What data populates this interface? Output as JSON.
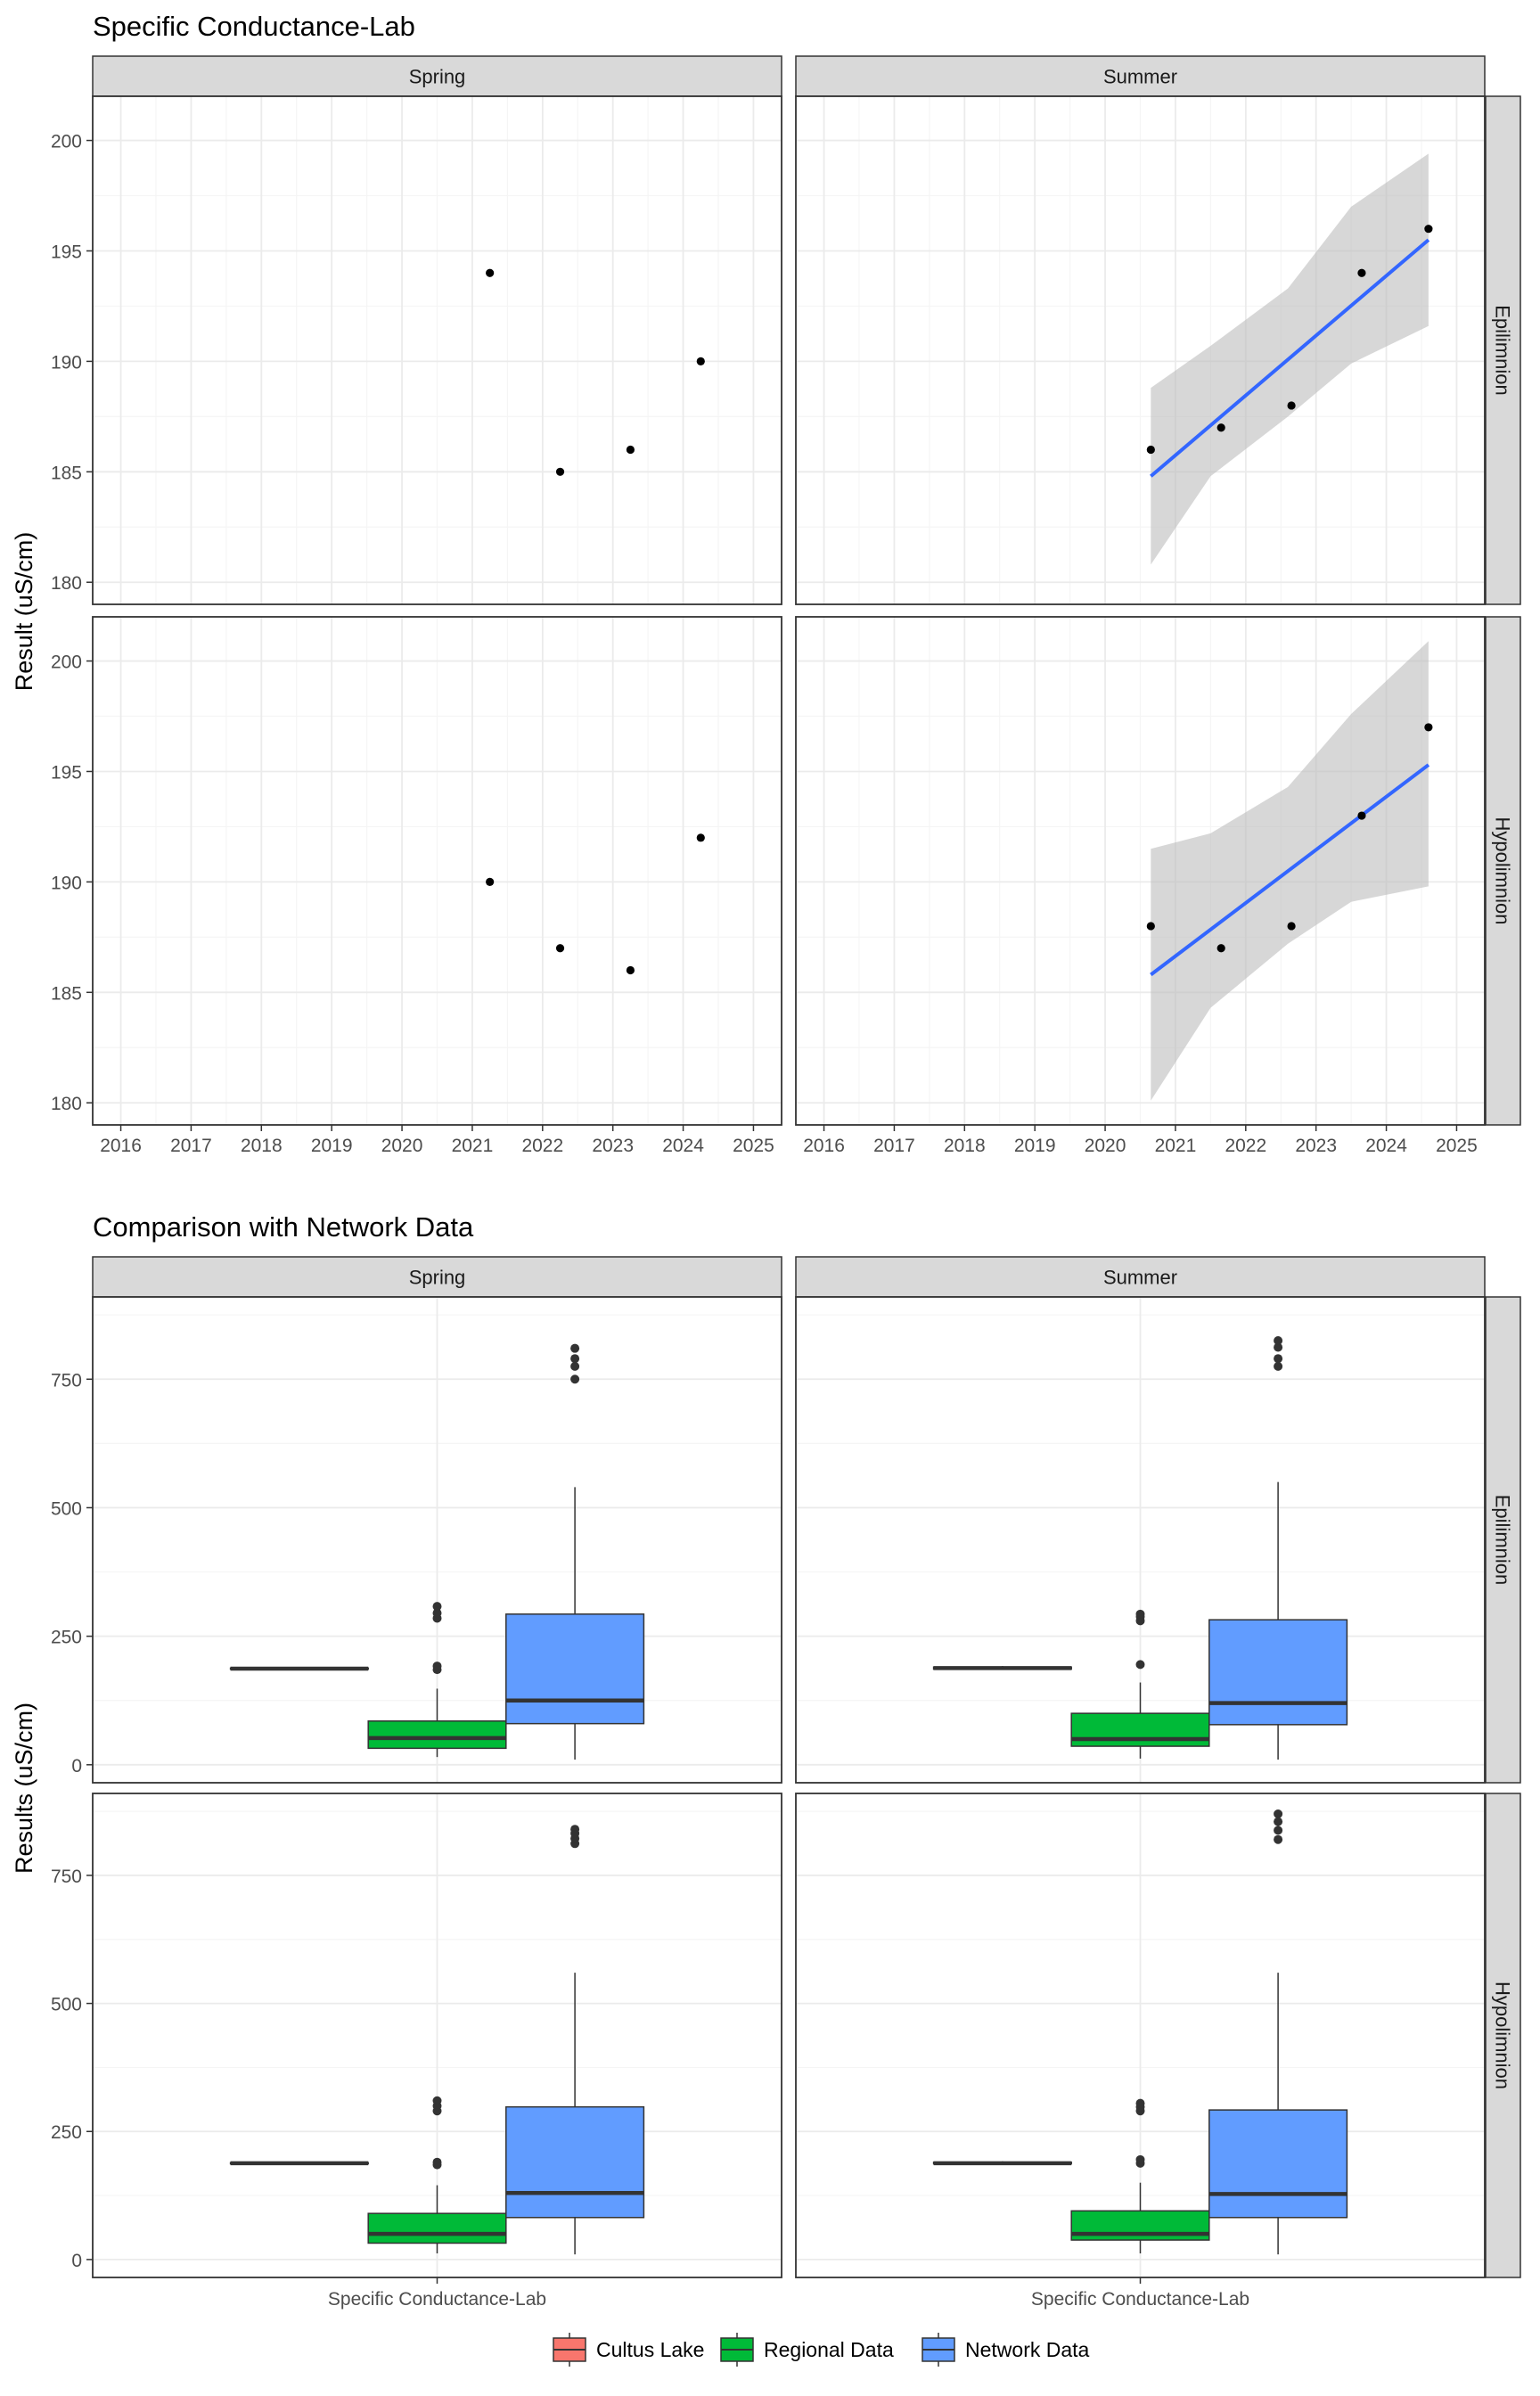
{
  "colors": {
    "strip_fill": "#d9d9d9",
    "grid_major": "#ebebeb",
    "grid_minor": "#f5f5f5",
    "panel_border": "#333333",
    "point": "#000000",
    "fit_line": "#3366ff",
    "ci_band": "#bdbdbd",
    "cultus_lake": "#f8766d",
    "regional_data": "#00ba38",
    "network_data": "#619cff"
  },
  "chart_data": [
    {
      "type": "scatter",
      "title": "Specific Conductance-Lab",
      "ylabel": "Result (uS/cm)",
      "xlabel": "",
      "column_facets": [
        "Spring",
        "Summer"
      ],
      "row_facets": [
        "Epilimnion",
        "Hypolimnion"
      ],
      "xlim": [
        2015.6,
        2025.4
      ],
      "ylim": [
        179,
        202
      ],
      "x_ticks": [
        "2016",
        "2017",
        "2018",
        "2019",
        "2020",
        "2021",
        "2022",
        "2023",
        "2024",
        "2025"
      ],
      "y_ticks": [
        "180",
        "185",
        "190",
        "195",
        "200"
      ],
      "grid": true,
      "panels": [
        {
          "column": "Spring",
          "row": "Epilimnion",
          "points": [
            {
              "x": 2021.25,
              "y": 194
            },
            {
              "x": 2022.25,
              "y": 185
            },
            {
              "x": 2023.25,
              "y": 186
            },
            {
              "x": 2024.25,
              "y": 190
            }
          ],
          "fit": null
        },
        {
          "column": "Summer",
          "row": "Epilimnion",
          "points": [
            {
              "x": 2020.65,
              "y": 186
            },
            {
              "x": 2021.65,
              "y": 187
            },
            {
              "x": 2022.65,
              "y": 188
            },
            {
              "x": 2023.65,
              "y": 194
            },
            {
              "x": 2024.6,
              "y": 196
            }
          ],
          "fit": {
            "x0": 2020.65,
            "y0": 184.8,
            "x1": 2024.6,
            "y1": 195.5,
            "band": [
              [
                2020.65,
                180.8,
                188.8
              ],
              [
                2021.5,
                184.8,
                190.7
              ],
              [
                2022.6,
                187.5,
                193.3
              ],
              [
                2023.5,
                189.9,
                197.0
              ],
              [
                2024.6,
                191.6,
                199.4
              ]
            ]
          }
        },
        {
          "column": "Spring",
          "row": "Hypolimnion",
          "points": [
            {
              "x": 2021.25,
              "y": 190
            },
            {
              "x": 2022.25,
              "y": 187
            },
            {
              "x": 2023.25,
              "y": 186
            },
            {
              "x": 2024.25,
              "y": 192
            }
          ],
          "fit": null
        },
        {
          "column": "Summer",
          "row": "Hypolimnion",
          "points": [
            {
              "x": 2020.65,
              "y": 188
            },
            {
              "x": 2021.65,
              "y": 187
            },
            {
              "x": 2022.65,
              "y": 188
            },
            {
              "x": 2023.65,
              "y": 193
            },
            {
              "x": 2024.6,
              "y": 197
            }
          ],
          "fit": {
            "x0": 2020.65,
            "y0": 185.8,
            "x1": 2024.6,
            "y1": 195.3,
            "band": [
              [
                2020.65,
                180.1,
                191.5
              ],
              [
                2021.5,
                184.3,
                192.2
              ],
              [
                2022.6,
                187.2,
                194.3
              ],
              [
                2023.5,
                189.1,
                197.6
              ],
              [
                2024.6,
                189.8,
                200.9
              ]
            ]
          }
        }
      ]
    },
    {
      "type": "box",
      "title": "Comparison with Network Data",
      "ylabel": "Results (uS/cm)",
      "xlabel": "",
      "column_facets": [
        "Spring",
        "Summer"
      ],
      "row_facets": [
        "Epilimnion",
        "Hypolimnion"
      ],
      "x_category": "Specific Conductance-Lab",
      "ylim": [
        -35,
        910
      ],
      "y_ticks": [
        "0",
        "250",
        "500",
        "750"
      ],
      "grid": true,
      "legend": {
        "placement": "bottom",
        "entries": [
          "Cultus Lake",
          "Regional Data",
          "Network Data"
        ]
      },
      "panels": [
        {
          "column": "Spring",
          "row": "Epilimnion",
          "boxes": [
            {
              "series": "Cultus Lake",
              "min": 185,
              "q1": 186,
              "median": 187,
              "q3": 188,
              "max": 189,
              "outliers": []
            },
            {
              "series": "Regional Data",
              "min": 15,
              "q1": 32,
              "median": 52,
              "q3": 85,
              "max": 148,
              "outliers": [
                185,
                192,
                285,
                295,
                308
              ]
            },
            {
              "series": "Network Data",
              "min": 10,
              "q1": 80,
              "median": 125,
              "q3": 293,
              "max": 540,
              "outliers": [
                750,
                775,
                790,
                810
              ]
            }
          ]
        },
        {
          "column": "Summer",
          "row": "Epilimnion",
          "boxes": [
            {
              "series": "Cultus Lake",
              "min": 185,
              "q1": 186,
              "median": 188,
              "q3": 190,
              "max": 192,
              "outliers": []
            },
            {
              "series": "Regional Data",
              "min": 12,
              "q1": 36,
              "median": 50,
              "q3": 100,
              "max": 160,
              "outliers": [
                195,
                280,
                288,
                293
              ]
            },
            {
              "series": "Network Data",
              "min": 10,
              "q1": 78,
              "median": 120,
              "q3": 282,
              "max": 550,
              "outliers": [
                775,
                790,
                812,
                825
              ]
            }
          ]
        },
        {
          "column": "Spring",
          "row": "Hypolimnion",
          "boxes": [
            {
              "series": "Cultus Lake",
              "min": 186,
              "q1": 187,
              "median": 188,
              "q3": 189,
              "max": 190,
              "outliers": []
            },
            {
              "series": "Regional Data",
              "min": 12,
              "q1": 32,
              "median": 50,
              "q3": 90,
              "max": 145,
              "outliers": [
                185,
                190,
                290,
                300,
                310
              ]
            },
            {
              "series": "Network Data",
              "min": 10,
              "q1": 82,
              "median": 130,
              "q3": 298,
              "max": 560,
              "outliers": [
                812,
                822,
                832,
                840
              ]
            }
          ]
        },
        {
          "column": "Summer",
          "row": "Hypolimnion",
          "boxes": [
            {
              "series": "Cultus Lake",
              "min": 186,
              "q1": 187,
              "median": 188,
              "q3": 190,
              "max": 192,
              "outliers": []
            },
            {
              "series": "Regional Data",
              "min": 12,
              "q1": 38,
              "median": 50,
              "q3": 95,
              "max": 150,
              "outliers": [
                188,
                195,
                290,
                298,
                305
              ]
            },
            {
              "series": "Network Data",
              "min": 10,
              "q1": 82,
              "median": 128,
              "q3": 292,
              "max": 560,
              "outliers": [
                820,
                838,
                855,
                870
              ]
            }
          ]
        }
      ]
    }
  ]
}
